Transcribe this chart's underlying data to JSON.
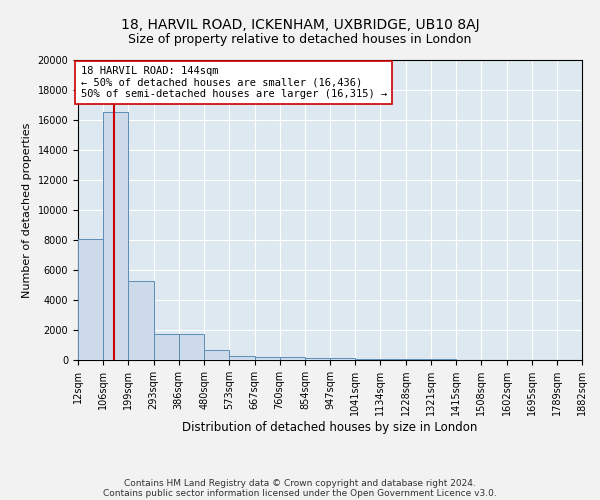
{
  "title": "18, HARVIL ROAD, ICKENHAM, UXBRIDGE, UB10 8AJ",
  "subtitle": "Size of property relative to detached houses in London",
  "xlabel": "Distribution of detached houses by size in London",
  "ylabel": "Number of detached properties",
  "footnote1": "Contains HM Land Registry data © Crown copyright and database right 2024.",
  "footnote2": "Contains public sector information licensed under the Open Government Licence v3.0.",
  "bin_edges": [
    12,
    106,
    199,
    293,
    386,
    480,
    573,
    667,
    760,
    854,
    947,
    1041,
    1134,
    1228,
    1321,
    1415,
    1508,
    1602,
    1695,
    1789,
    1882
  ],
  "bar_heights": [
    8100,
    16500,
    5300,
    1750,
    1750,
    700,
    300,
    200,
    200,
    150,
    150,
    80,
    60,
    50,
    40,
    30,
    25,
    20,
    15,
    10
  ],
  "bar_color": "#ccdaea",
  "bar_edge_color": "#5b8db8",
  "property_size": 144,
  "property_label": "18 HARVIL ROAD: 144sqm",
  "annotation_line1": "← 50% of detached houses are smaller (16,436)",
  "annotation_line2": "50% of semi-detached houses are larger (16,315) →",
  "red_line_color": "#cc0000",
  "annotation_box_facecolor": "#ffffff",
  "annotation_box_edgecolor": "#cc0000",
  "ylim": [
    0,
    20000
  ],
  "yticks": [
    0,
    2000,
    4000,
    6000,
    8000,
    10000,
    12000,
    14000,
    16000,
    18000,
    20000
  ],
  "plot_bg_color": "#dde8f0",
  "fig_bg_color": "#f2f2f2",
  "grid_color": "#ffffff",
  "title_fontsize": 10,
  "subtitle_fontsize": 9,
  "xlabel_fontsize": 8.5,
  "ylabel_fontsize": 8,
  "tick_fontsize": 7,
  "footnote_fontsize": 6.5,
  "annotation_fontsize": 7.5
}
